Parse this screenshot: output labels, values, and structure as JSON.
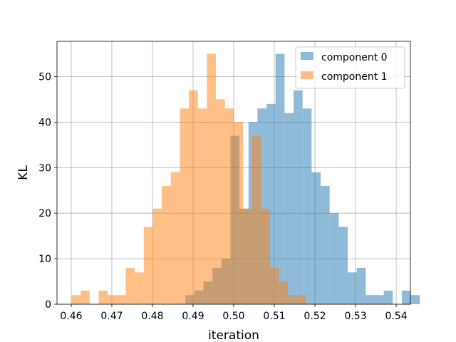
{
  "chart_data": {
    "type": "bar",
    "title": "",
    "xlabel": "iteration",
    "ylabel": "KL",
    "xlim": [
      0.4565,
      0.5435
    ],
    "ylim": [
      0,
      57.75
    ],
    "grid": true,
    "legend_position": "upper-right",
    "x_ticks": [
      0.46,
      0.47,
      0.48,
      0.49,
      0.5,
      0.51,
      0.52,
      0.53,
      0.54
    ],
    "x_tick_labels": [
      "0.46",
      "0.47",
      "0.48",
      "0.49",
      "0.50",
      "0.51",
      "0.52",
      "0.53",
      "0.54"
    ],
    "y_ticks": [
      0,
      10,
      20,
      30,
      40,
      50
    ],
    "y_tick_labels": [
      "0",
      "10",
      "20",
      "30",
      "40",
      "50"
    ],
    "series": [
      {
        "name": "component 0",
        "color": "#1f77b4",
        "alpha": 0.5,
        "bin_start": 0.4881,
        "bin_width": 0.00222,
        "counts": [
          2,
          3,
          5,
          8,
          10,
          37,
          21,
          40,
          43,
          44,
          55,
          42,
          47,
          43,
          29,
          26,
          20,
          17,
          7,
          8,
          2,
          2,
          3,
          0,
          3,
          2
        ]
      },
      {
        "name": "component 1",
        "color": "#ff7f0e",
        "alpha": 0.5,
        "bin_start": 0.4601,
        "bin_width": 0.00222,
        "counts": [
          2,
          3,
          0,
          3,
          2,
          2,
          8,
          7,
          17,
          21,
          26,
          29,
          43,
          47,
          43,
          55,
          45,
          43,
          40,
          21,
          37,
          21,
          8,
          5,
          2,
          2
        ]
      }
    ]
  }
}
